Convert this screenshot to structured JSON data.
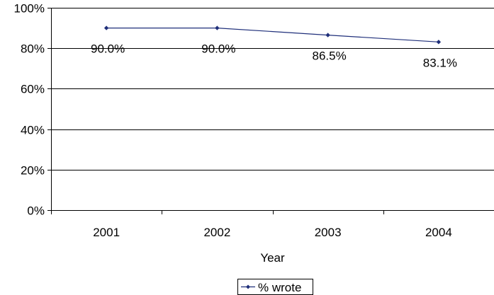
{
  "chart_data": {
    "type": "line",
    "categories": [
      "2001",
      "2002",
      "2003",
      "2004"
    ],
    "series": [
      {
        "name": "% wrote",
        "values": [
          90.0,
          90.0,
          86.5,
          83.1
        ],
        "labels": [
          "90.0%",
          "90.0%",
          "86.5%",
          "83.1%"
        ],
        "color": "#1f2f7a"
      }
    ],
    "xlabel": "Year",
    "ylabel": "",
    "ylim": [
      0,
      100
    ],
    "yticks": [
      {
        "value": 0,
        "label": "0%"
      },
      {
        "value": 20,
        "label": "20%"
      },
      {
        "value": 40,
        "label": "40%"
      },
      {
        "value": 60,
        "label": "60%"
      },
      {
        "value": 80,
        "label": "80%"
      },
      {
        "value": 100,
        "label": "100%"
      }
    ],
    "grid": true,
    "legend_position": "bottom-center"
  }
}
